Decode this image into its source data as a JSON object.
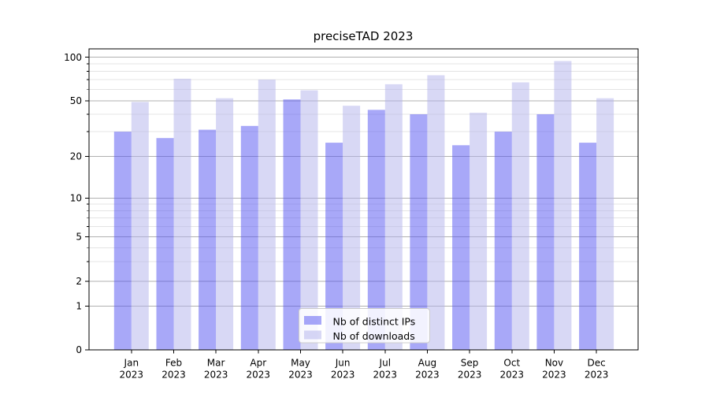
{
  "chart_data": {
    "type": "bar",
    "title": "preciseTAD 2023",
    "x_ticks": [
      {
        "month": "Jan",
        "year": "2023"
      },
      {
        "month": "Feb",
        "year": "2023"
      },
      {
        "month": "Mar",
        "year": "2023"
      },
      {
        "month": "Apr",
        "year": "2023"
      },
      {
        "month": "May",
        "year": "2023"
      },
      {
        "month": "Jun",
        "year": "2023"
      },
      {
        "month": "Jul",
        "year": "2023"
      },
      {
        "month": "Aug",
        "year": "2023"
      },
      {
        "month": "Sep",
        "year": "2023"
      },
      {
        "month": "Oct",
        "year": "2023"
      },
      {
        "month": "Nov",
        "year": "2023"
      },
      {
        "month": "Dec",
        "year": "2023"
      }
    ],
    "series": [
      {
        "key": "distinct-ips",
        "name": "Nb of distinct IPs",
        "color": "#5151f1",
        "opacity": 0.5,
        "values": [
          30,
          27,
          31,
          33,
          51,
          25,
          43,
          40,
          24,
          30,
          40,
          25
        ]
      },
      {
        "key": "downloads",
        "name": "Nb of downloads",
        "color": "#b1b1ec",
        "opacity": 0.5,
        "values": [
          49,
          71,
          52,
          70,
          59,
          46,
          65,
          75,
          41,
          67,
          94,
          52
        ]
      }
    ],
    "y_axis": {
      "scale": "log-like (compressed below 10, linear 0-1)",
      "major_ticks": [
        0,
        1,
        2,
        5,
        10,
        20,
        50,
        100
      ],
      "minor_ticks": [
        3,
        4,
        6,
        7,
        8,
        9,
        30,
        40,
        60,
        70,
        80,
        90
      ],
      "ylim": [
        0,
        114
      ]
    },
    "xlabel": "",
    "ylabel": "",
    "grid": {
      "major_on": true,
      "minor_on": true
    },
    "legend": {
      "position": "lower center"
    },
    "colors": {
      "text": "#000000",
      "spine": "#000000",
      "grid_major": "#b0b0b0",
      "grid_minor": "#e4e4e4",
      "legend_bg": "#ffffff",
      "legend_border": "#cccccc"
    }
  }
}
